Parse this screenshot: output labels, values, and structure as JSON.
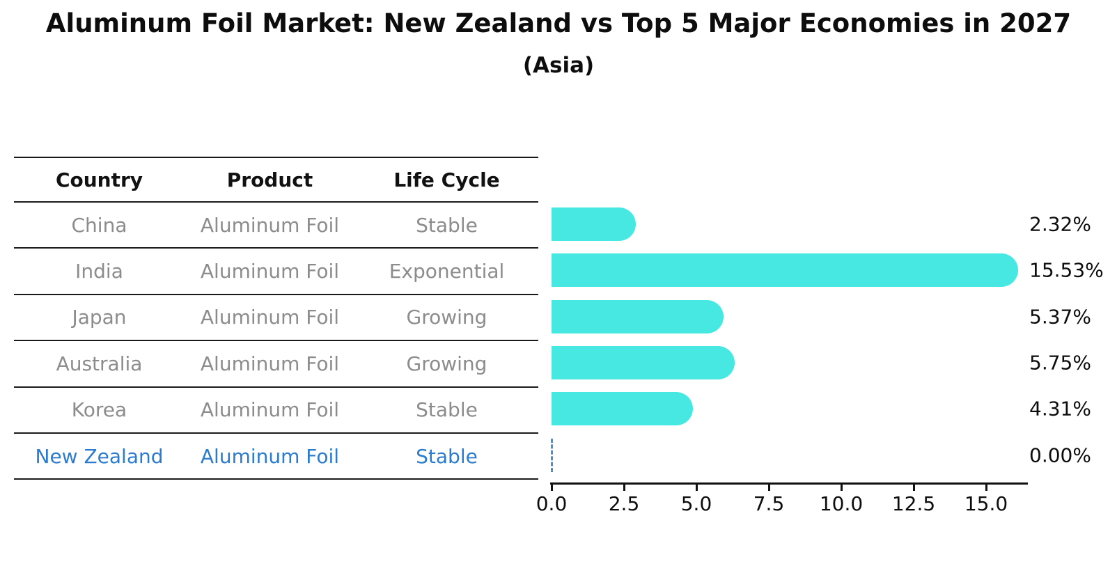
{
  "title": "Aluminum Foil Market: New Zealand vs Top 5 Major Economies in 2027",
  "subtitle": "(Asia)",
  "table": {
    "columns": [
      "Country",
      "Product",
      "Life Cycle"
    ],
    "rows": [
      {
        "country": "China",
        "product": "Aluminum Foil",
        "life_cycle": "Stable",
        "highlight": false
      },
      {
        "country": "India",
        "product": "Aluminum Foil",
        "life_cycle": "Exponential",
        "highlight": false
      },
      {
        "country": "Japan",
        "product": "Aluminum Foil",
        "life_cycle": "Growing",
        "highlight": false
      },
      {
        "country": "Australia",
        "product": "Aluminum Foil",
        "life_cycle": "Growing",
        "highlight": false
      },
      {
        "country": "Korea",
        "product": "Aluminum Foil",
        "life_cycle": "Stable",
        "highlight": false
      },
      {
        "country": "New Zealand",
        "product": "Aluminum Foil",
        "life_cycle": "Stable",
        "highlight": true
      }
    ]
  },
  "chart_data": {
    "type": "bar",
    "orientation": "horizontal",
    "title": "Aluminum Foil Market: New Zealand vs Top 5 Major Economies in 2027",
    "subtitle": "(Asia)",
    "categories": [
      "China",
      "India",
      "Japan",
      "Australia",
      "Korea",
      "New Zealand"
    ],
    "values": [
      2.32,
      15.53,
      5.37,
      5.75,
      4.31,
      0.0
    ],
    "value_labels": [
      "2.32%",
      "15.53%",
      "5.37%",
      "5.75%",
      "4.31%",
      "0.00%"
    ],
    "x_ticks": [
      0.0,
      2.5,
      5.0,
      7.5,
      10.0,
      12.5,
      15.0
    ],
    "x_tick_labels": [
      "0.0",
      "2.5",
      "5.0",
      "7.5",
      "10.0",
      "12.5",
      "15.0"
    ],
    "xlim": [
      0,
      16.4
    ],
    "xlabel": "",
    "ylabel": "",
    "grid": false,
    "legend": false,
    "zero_value_marker": "dashed-line"
  },
  "colors": {
    "bar": "#47e7e2",
    "highlight_text": "#2b7bce",
    "zero_marker": "#4a90cc",
    "row_text": "#8c8c8c",
    "line": "#1a1a1a"
  }
}
